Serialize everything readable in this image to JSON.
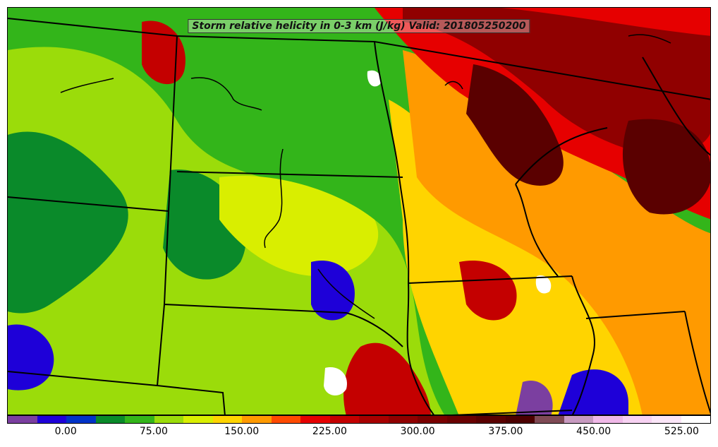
{
  "title": "Storm relative helicity in 0-3 km (J/kg) Valid: 201805250200",
  "colorbar": {
    "colors": [
      "#7b3fa0",
      "#1e00d8",
      "#0033c8",
      "#0a8a2a",
      "#33b51a",
      "#9bdc0a",
      "#d9ee00",
      "#ffd400",
      "#ff9a00",
      "#ff4a00",
      "#e60000",
      "#c40000",
      "#a80000",
      "#900000",
      "#7a0000",
      "#6a0000",
      "#5a0000",
      "#4c0000",
      "#7f4a55",
      "#c79ac0",
      "#f0b9e8",
      "#f7d2f2",
      "#fbe6f8",
      "#ffffff"
    ],
    "tick_labels": [
      "0.00",
      "75.00",
      "150.00",
      "225.00",
      "300.00",
      "375.00",
      "450.00",
      "525.00"
    ],
    "tick_values": [
      0,
      75,
      150,
      225,
      300,
      375,
      450,
      525
    ],
    "range": [
      -50,
      550
    ]
  },
  "map": {
    "regions": [
      {
        "name": "northern-plains-dark",
        "color": "#6a0000",
        "level": 320
      },
      {
        "name": "great-lakes-red",
        "color": "#c40000",
        "level": 250
      },
      {
        "name": "central-plains-yellow",
        "color": "#ffd400",
        "level": 125
      },
      {
        "name": "western-green",
        "color": "#33b51a",
        "level": 75
      },
      {
        "name": "southwest-blue",
        "color": "#1e00d8",
        "level": 0
      }
    ]
  }
}
